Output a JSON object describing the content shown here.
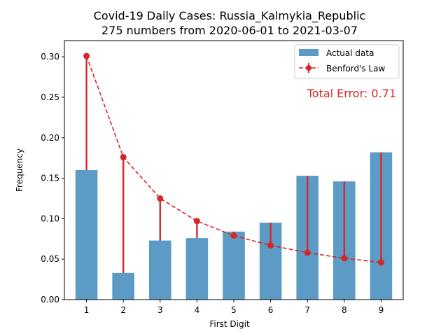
{
  "colors": {
    "bar": "#5b9bc6",
    "benford": "#d62728",
    "axis": "#000000"
  },
  "chart_data": {
    "type": "bar",
    "title_line1": "Covid-19 Daily Cases: Russia_Kalmykia_Republic",
    "title_line2": "275 numbers from 2020-06-01 to 2021-03-07",
    "xlabel": "First Digit",
    "ylabel": "Frequency",
    "categories": [
      "1",
      "2",
      "3",
      "4",
      "5",
      "6",
      "7",
      "8",
      "9"
    ],
    "ylim": [
      0,
      0.32
    ],
    "yticks": [
      "0.00",
      "0.05",
      "0.10",
      "0.15",
      "0.20",
      "0.25",
      "0.30"
    ],
    "grid": false,
    "legend_position": "top-right",
    "series": [
      {
        "name": "Actual data",
        "type": "bar",
        "values": [
          0.16,
          0.033,
          0.073,
          0.076,
          0.084,
          0.095,
          0.153,
          0.146,
          0.182
        ]
      },
      {
        "name": "Benford's Law",
        "type": "line",
        "style": "dashed-with-markers-and-error-stems",
        "values": [
          0.301,
          0.176,
          0.125,
          0.097,
          0.079,
          0.067,
          0.058,
          0.051,
          0.046
        ]
      }
    ],
    "annotation": "Total Error: 0.71"
  }
}
